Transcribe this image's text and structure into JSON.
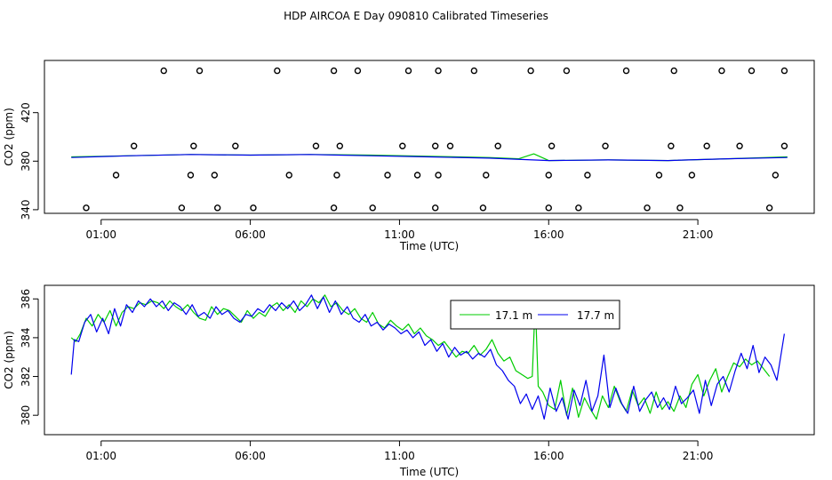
{
  "title": "HDP AIRCOA E  Day 090810  Calibrated Timeseries",
  "chart_data": [
    {
      "type": "scatter+line",
      "title": "",
      "xlabel": "Time (UTC)",
      "ylabel": "CO2 (ppm)",
      "x_ticks": [
        1,
        6,
        11,
        16,
        21
      ],
      "x_tick_labels": [
        "01:00",
        "06:00",
        "11:00",
        "16:00",
        "21:00"
      ],
      "xlim": [
        -0.9,
        24.9
      ],
      "y_ticks": [
        340,
        380,
        420
      ],
      "y_tick_labels": [
        "340",
        "380",
        "420"
      ],
      "ylim": [
        337,
        463
      ],
      "grid": false,
      "calibration_points": {
        "x": [
          0.5,
          1.5,
          2.1,
          3.1,
          3.7,
          4.0,
          4.1,
          4.3,
          4.8,
          4.9,
          5.5,
          6.1,
          6.9,
          7.3,
          8.2,
          8.8,
          8.8,
          8.9,
          9.0,
          9.6,
          10.1,
          10.6,
          11.1,
          11.3,
          11.6,
          12.2,
          12.2,
          12.3,
          12.3,
          12.7,
          13.5,
          13.8,
          13.9,
          14.3,
          15.4,
          16.0,
          16.0,
          16.1,
          16.6,
          17.0,
          17.3,
          17.9,
          18.6,
          19.3,
          19.7,
          20.1,
          20.2,
          20.4,
          20.8,
          21.3,
          21.8,
          22.4,
          22.8,
          23.4,
          23.6,
          23.9,
          23.9
        ],
        "y": [
          341.5,
          368.5,
          392.5,
          454.5,
          341.5,
          368.5,
          392.5,
          454.5,
          368.5,
          341.5,
          392.5,
          341.5,
          454.5,
          368.5,
          392.5,
          454.5,
          341.5,
          368.5,
          392.5,
          454.5,
          341.5,
          368.5,
          392.5,
          454.5,
          368.5,
          341.5,
          392.5,
          454.5,
          368.5,
          392.5,
          454.5,
          341.5,
          368.5,
          392.5,
          454.5,
          341.5,
          368.5,
          392.5,
          454.5,
          341.5,
          368.5,
          392.5,
          454.5,
          341.5,
          368.5,
          392.5,
          454.5,
          341.5,
          368.5,
          392.5,
          454.5,
          392.5,
          454.5,
          341.5,
          368.5,
          392.5,
          454.5
        ]
      },
      "series": [
        {
          "color": "#00cc00",
          "x": [
            0,
            2,
            4,
            6,
            8,
            10,
            12,
            14,
            15,
            15.5,
            16,
            18,
            20,
            22,
            24
          ],
          "y": [
            383.5,
            384.5,
            385.5,
            385.0,
            385.5,
            385.0,
            384.0,
            383.0,
            382.0,
            386.0,
            380.5,
            381.0,
            380.5,
            382.0,
            383.5
          ]
        },
        {
          "color": "#0000ee",
          "x": [
            0,
            2,
            4,
            6,
            8,
            10,
            12,
            14,
            16,
            18,
            20,
            22,
            24
          ],
          "y": [
            383.0,
            384.5,
            385.5,
            385.0,
            385.5,
            384.5,
            383.5,
            382.5,
            380.5,
            381.0,
            380.5,
            382.0,
            383.0
          ]
        }
      ]
    },
    {
      "type": "line",
      "title": "",
      "xlabel": "Time (UTC)",
      "ylabel": "CO2 (ppm)",
      "x_ticks": [
        1,
        6,
        11,
        16,
        21
      ],
      "x_tick_labels": [
        "01:00",
        "06:00",
        "11:00",
        "16:00",
        "21:00"
      ],
      "xlim": [
        -0.9,
        24.9
      ],
      "y_ticks": [
        380,
        382,
        384,
        386
      ],
      "y_tick_labels": [
        "380",
        "382",
        "384",
        "386"
      ],
      "ylim": [
        379.0,
        386.7
      ],
      "grid": false,
      "legend_position": "top-center",
      "series": [
        {
          "name": "17.1 m",
          "color": "#00cc00",
          "x": [
            0,
            0.15,
            0.3,
            0.5,
            0.7,
            0.9,
            1.1,
            1.3,
            1.5,
            1.7,
            1.9,
            2.1,
            2.3,
            2.5,
            2.7,
            2.9,
            3.1,
            3.3,
            3.5,
            3.7,
            3.9,
            4.1,
            4.3,
            4.5,
            4.7,
            4.9,
            5.1,
            5.3,
            5.5,
            5.7,
            5.9,
            6.1,
            6.3,
            6.5,
            6.7,
            6.9,
            7.1,
            7.3,
            7.5,
            7.7,
            7.9,
            8.1,
            8.3,
            8.5,
            8.7,
            8.9,
            9.1,
            9.3,
            9.5,
            9.7,
            9.9,
            10.1,
            10.3,
            10.5,
            10.7,
            10.9,
            11.1,
            11.3,
            11.5,
            11.7,
            11.9,
            12.1,
            12.3,
            12.5,
            12.7,
            12.9,
            13.1,
            13.3,
            13.5,
            13.7,
            13.9,
            14.1,
            14.3,
            14.5,
            14.7,
            14.9,
            15.1,
            15.3,
            15.45,
            15.55,
            15.65,
            15.8,
            16.0,
            16.2,
            16.4,
            16.6,
            16.8,
            17.0,
            17.2,
            17.4,
            17.6,
            17.8,
            18.0,
            18.2,
            18.4,
            18.6,
            18.8,
            19.0,
            19.2,
            19.4,
            19.6,
            19.8,
            20.0,
            20.2,
            20.4,
            20.6,
            20.8,
            21.0,
            21.2,
            21.4,
            21.6,
            21.8,
            22.0,
            22.2,
            22.4,
            22.6,
            22.8,
            23.0,
            23.2,
            23.4
          ],
          "y": [
            384.0,
            383.8,
            384.2,
            385.0,
            384.6,
            385.2,
            384.8,
            385.4,
            384.6,
            385.3,
            385.6,
            385.5,
            385.8,
            385.7,
            385.9,
            385.8,
            385.5,
            385.9,
            385.6,
            385.4,
            385.7,
            385.3,
            385.0,
            384.9,
            385.6,
            385.2,
            385.5,
            385.4,
            385.1,
            384.8,
            385.4,
            385.0,
            385.3,
            385.1,
            385.6,
            385.8,
            385.4,
            385.7,
            385.3,
            385.9,
            385.6,
            386.0,
            385.8,
            386.2,
            385.6,
            385.8,
            385.4,
            385.2,
            385.5,
            385.0,
            384.8,
            385.3,
            384.7,
            384.5,
            384.9,
            384.6,
            384.4,
            384.7,
            384.2,
            384.5,
            384.1,
            383.9,
            383.6,
            383.8,
            383.4,
            383.0,
            383.3,
            383.2,
            383.6,
            383.1,
            383.4,
            383.9,
            383.2,
            382.8,
            383.0,
            382.3,
            382.1,
            381.9,
            382.0,
            385.9,
            381.5,
            381.2,
            380.5,
            380.3,
            381.8,
            380.0,
            381.4,
            379.9,
            380.9,
            380.3,
            379.8,
            381.0,
            380.4,
            381.5,
            380.7,
            380.2,
            381.3,
            380.5,
            380.9,
            380.1,
            381.2,
            380.3,
            380.7,
            380.2,
            381.0,
            380.4,
            381.6,
            382.1,
            381.0,
            381.8,
            382.4,
            381.2,
            382.0,
            382.7,
            382.5,
            382.9,
            382.6,
            382.8,
            382.4,
            382.0
          ]
        },
        {
          "name": "17.7 m",
          "color": "#0000ee",
          "x": [
            0,
            0.1,
            0.25,
            0.45,
            0.65,
            0.85,
            1.05,
            1.25,
            1.45,
            1.65,
            1.85,
            2.05,
            2.25,
            2.45,
            2.65,
            2.85,
            3.05,
            3.25,
            3.45,
            3.65,
            3.85,
            4.05,
            4.25,
            4.45,
            4.65,
            4.85,
            5.05,
            5.25,
            5.45,
            5.65,
            5.85,
            6.05,
            6.25,
            6.45,
            6.65,
            6.85,
            7.05,
            7.25,
            7.45,
            7.65,
            7.85,
            8.05,
            8.25,
            8.45,
            8.65,
            8.85,
            9.05,
            9.25,
            9.45,
            9.65,
            9.85,
            10.05,
            10.25,
            10.45,
            10.65,
            10.85,
            11.05,
            11.25,
            11.45,
            11.65,
            11.85,
            12.05,
            12.25,
            12.45,
            12.65,
            12.85,
            13.05,
            13.25,
            13.45,
            13.65,
            13.85,
            14.05,
            14.25,
            14.45,
            14.65,
            14.85,
            15.05,
            15.25,
            15.45,
            15.65,
            15.85,
            16.05,
            16.25,
            16.45,
            16.65,
            16.85,
            17.05,
            17.25,
            17.45,
            17.65,
            17.85,
            18.05,
            18.25,
            18.45,
            18.65,
            18.85,
            19.05,
            19.25,
            19.45,
            19.65,
            19.85,
            20.05,
            20.25,
            20.45,
            20.65,
            20.85,
            21.05,
            21.25,
            21.45,
            21.65,
            21.85,
            22.05,
            22.25,
            22.45,
            22.65,
            22.85,
            23.05,
            23.25,
            23.45,
            23.65,
            23.9
          ],
          "y": [
            382.1,
            383.9,
            383.8,
            384.8,
            385.2,
            384.3,
            385.0,
            384.2,
            385.5,
            384.6,
            385.7,
            385.3,
            385.9,
            385.6,
            386.0,
            385.6,
            385.9,
            385.4,
            385.8,
            385.6,
            385.2,
            385.7,
            385.1,
            385.3,
            385.0,
            385.6,
            385.2,
            385.4,
            385.0,
            384.8,
            385.2,
            385.1,
            385.5,
            385.3,
            385.7,
            385.4,
            385.8,
            385.5,
            385.9,
            385.4,
            385.7,
            386.2,
            385.5,
            386.1,
            385.3,
            385.9,
            385.2,
            385.6,
            385.0,
            384.8,
            385.2,
            384.6,
            384.8,
            384.4,
            384.7,
            384.5,
            384.2,
            384.4,
            384.0,
            384.3,
            383.6,
            383.9,
            383.3,
            383.7,
            383.0,
            383.5,
            383.1,
            383.3,
            382.9,
            383.2,
            383.0,
            383.4,
            382.6,
            382.3,
            381.8,
            381.5,
            380.6,
            381.1,
            380.3,
            381.0,
            379.8,
            381.4,
            380.2,
            380.9,
            379.8,
            381.3,
            380.5,
            381.8,
            380.2,
            381.0,
            383.1,
            380.4,
            381.4,
            380.6,
            380.1,
            381.5,
            380.2,
            380.8,
            381.2,
            380.4,
            380.9,
            380.3,
            381.5,
            380.6,
            380.9,
            381.3,
            380.1,
            381.8,
            380.5,
            381.6,
            382.0,
            381.2,
            382.3,
            383.2,
            382.4,
            383.6,
            382.2,
            383.0,
            382.6,
            381.8,
            384.2
          ]
        }
      ]
    }
  ]
}
